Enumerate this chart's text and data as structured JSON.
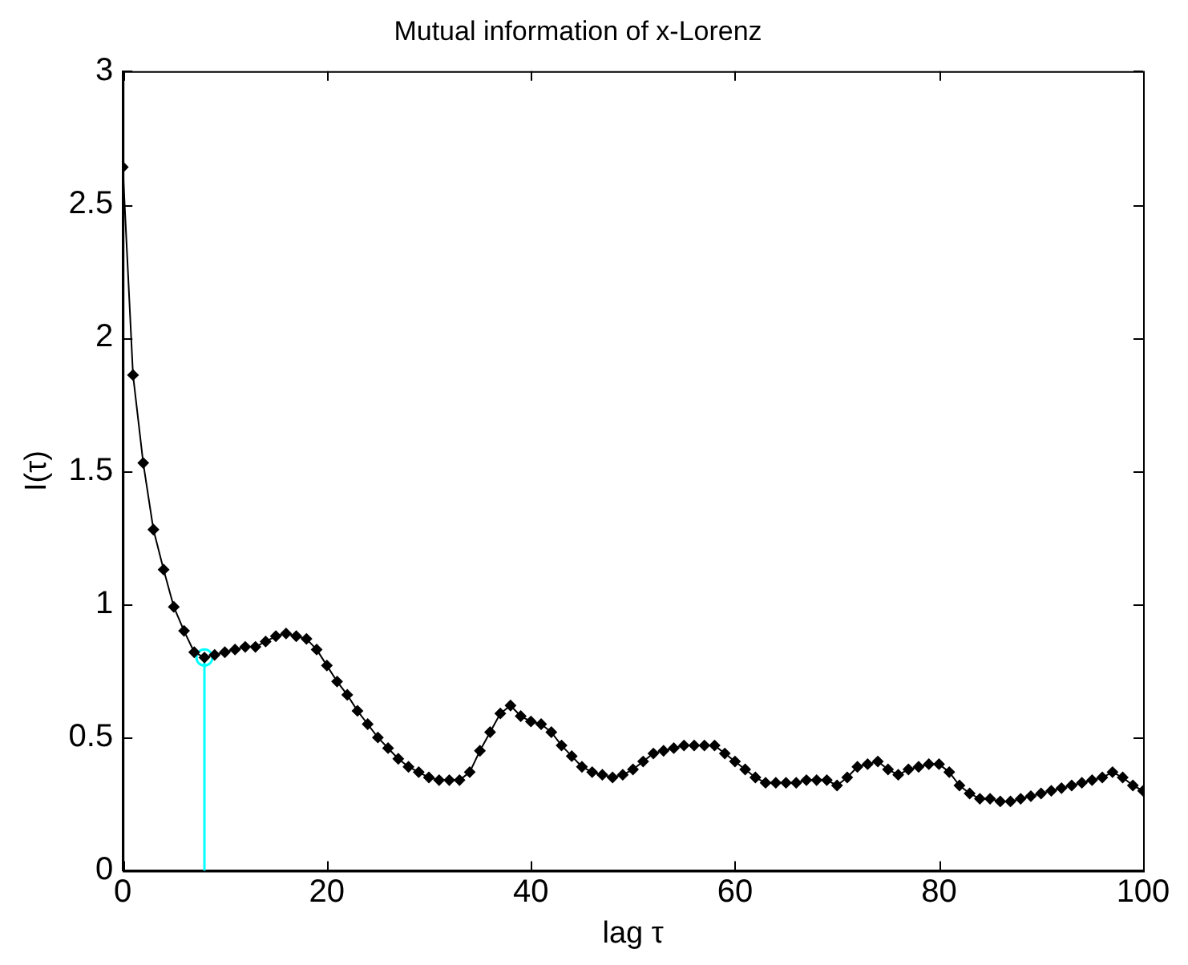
{
  "chart_data": {
    "type": "line",
    "title": "Mutual information of x-Lorenz",
    "xlabel": "lag τ",
    "ylabel": "I(τ)",
    "xlim": [
      0,
      100
    ],
    "xticks": [
      0,
      20,
      40,
      60,
      80,
      100
    ],
    "ylim": [
      0,
      3
    ],
    "yticks": [
      0,
      0.5,
      1,
      1.5,
      2,
      2.5,
      3
    ],
    "grid": false,
    "legend": false,
    "series": [
      {
        "color": "#000000",
        "marker": "diamond",
        "x": [
          0,
          1,
          2,
          3,
          4,
          5,
          6,
          7,
          8,
          9,
          10,
          11,
          12,
          13,
          14,
          15,
          16,
          17,
          18,
          19,
          20,
          21,
          22,
          23,
          24,
          25,
          26,
          27,
          28,
          29,
          30,
          31,
          32,
          33,
          34,
          35,
          36,
          37,
          38,
          39,
          40,
          41,
          42,
          43,
          44,
          45,
          46,
          47,
          48,
          49,
          50,
          51,
          52,
          53,
          54,
          55,
          56,
          57,
          58,
          59,
          60,
          61,
          62,
          63,
          64,
          65,
          66,
          67,
          68,
          69,
          70,
          71,
          72,
          73,
          74,
          75,
          76,
          77,
          78,
          79,
          80,
          81,
          82,
          83,
          84,
          85,
          86,
          87,
          88,
          89,
          90,
          91,
          92,
          93,
          94,
          95,
          96,
          97,
          98,
          99,
          100
        ],
        "values": [
          2.64,
          1.86,
          1.53,
          1.28,
          1.13,
          0.99,
          0.9,
          0.82,
          0.8,
          0.81,
          0.82,
          0.83,
          0.84,
          0.84,
          0.86,
          0.88,
          0.89,
          0.88,
          0.87,
          0.83,
          0.77,
          0.71,
          0.66,
          0.6,
          0.55,
          0.5,
          0.46,
          0.42,
          0.39,
          0.37,
          0.35,
          0.34,
          0.34,
          0.34,
          0.37,
          0.45,
          0.52,
          0.59,
          0.62,
          0.58,
          0.56,
          0.55,
          0.52,
          0.47,
          0.43,
          0.39,
          0.37,
          0.36,
          0.35,
          0.36,
          0.38,
          0.41,
          0.44,
          0.45,
          0.46,
          0.47,
          0.47,
          0.47,
          0.47,
          0.44,
          0.41,
          0.38,
          0.35,
          0.33,
          0.33,
          0.33,
          0.33,
          0.34,
          0.34,
          0.34,
          0.32,
          0.35,
          0.39,
          0.4,
          0.41,
          0.38,
          0.36,
          0.38,
          0.39,
          0.4,
          0.4,
          0.37,
          0.32,
          0.29,
          0.27,
          0.27,
          0.26,
          0.26,
          0.27,
          0.28,
          0.29,
          0.3,
          0.31,
          0.32,
          0.33,
          0.34,
          0.35,
          0.37,
          0.35,
          0.32,
          0.3
        ]
      },
      {
        "type": "lollipop",
        "color": "#00ffff",
        "marker": "circle",
        "x": [
          8
        ],
        "values": [
          0.8
        ]
      }
    ]
  }
}
